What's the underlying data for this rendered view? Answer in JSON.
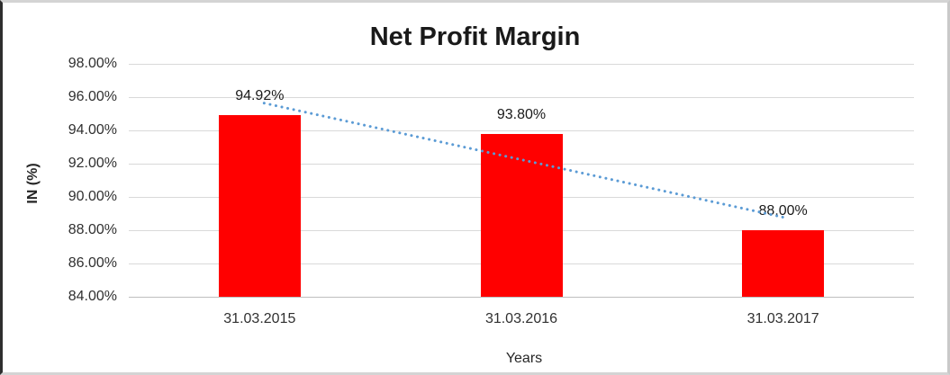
{
  "chart_data": {
    "type": "bar",
    "title": "Net Profit Margin",
    "categories": [
      "31.03.2015",
      "31.03.2016",
      "31.03.2017"
    ],
    "values": [
      94.92,
      93.8,
      88.0
    ],
    "data_labels": [
      "94.92%",
      "93.80%",
      "88.00%"
    ],
    "xlabel": "Years",
    "ylabel": "IN (%)",
    "ylim": [
      84,
      98
    ],
    "ytick_step": 2,
    "ytick_labels": [
      "98.00%",
      "96.00%",
      "94.00%",
      "92.00%",
      "90.00%",
      "88.00%",
      "86.00%",
      "84.00%"
    ],
    "grid": true,
    "legend": "none",
    "bar_color": "#FF0000",
    "gridline_color": "#D9D9D9",
    "axis_line_color": "#BFBFBF",
    "text_color": "#303030",
    "trendline": {
      "type": "linear",
      "style": "dotted",
      "color": "#5B9BD5"
    }
  }
}
